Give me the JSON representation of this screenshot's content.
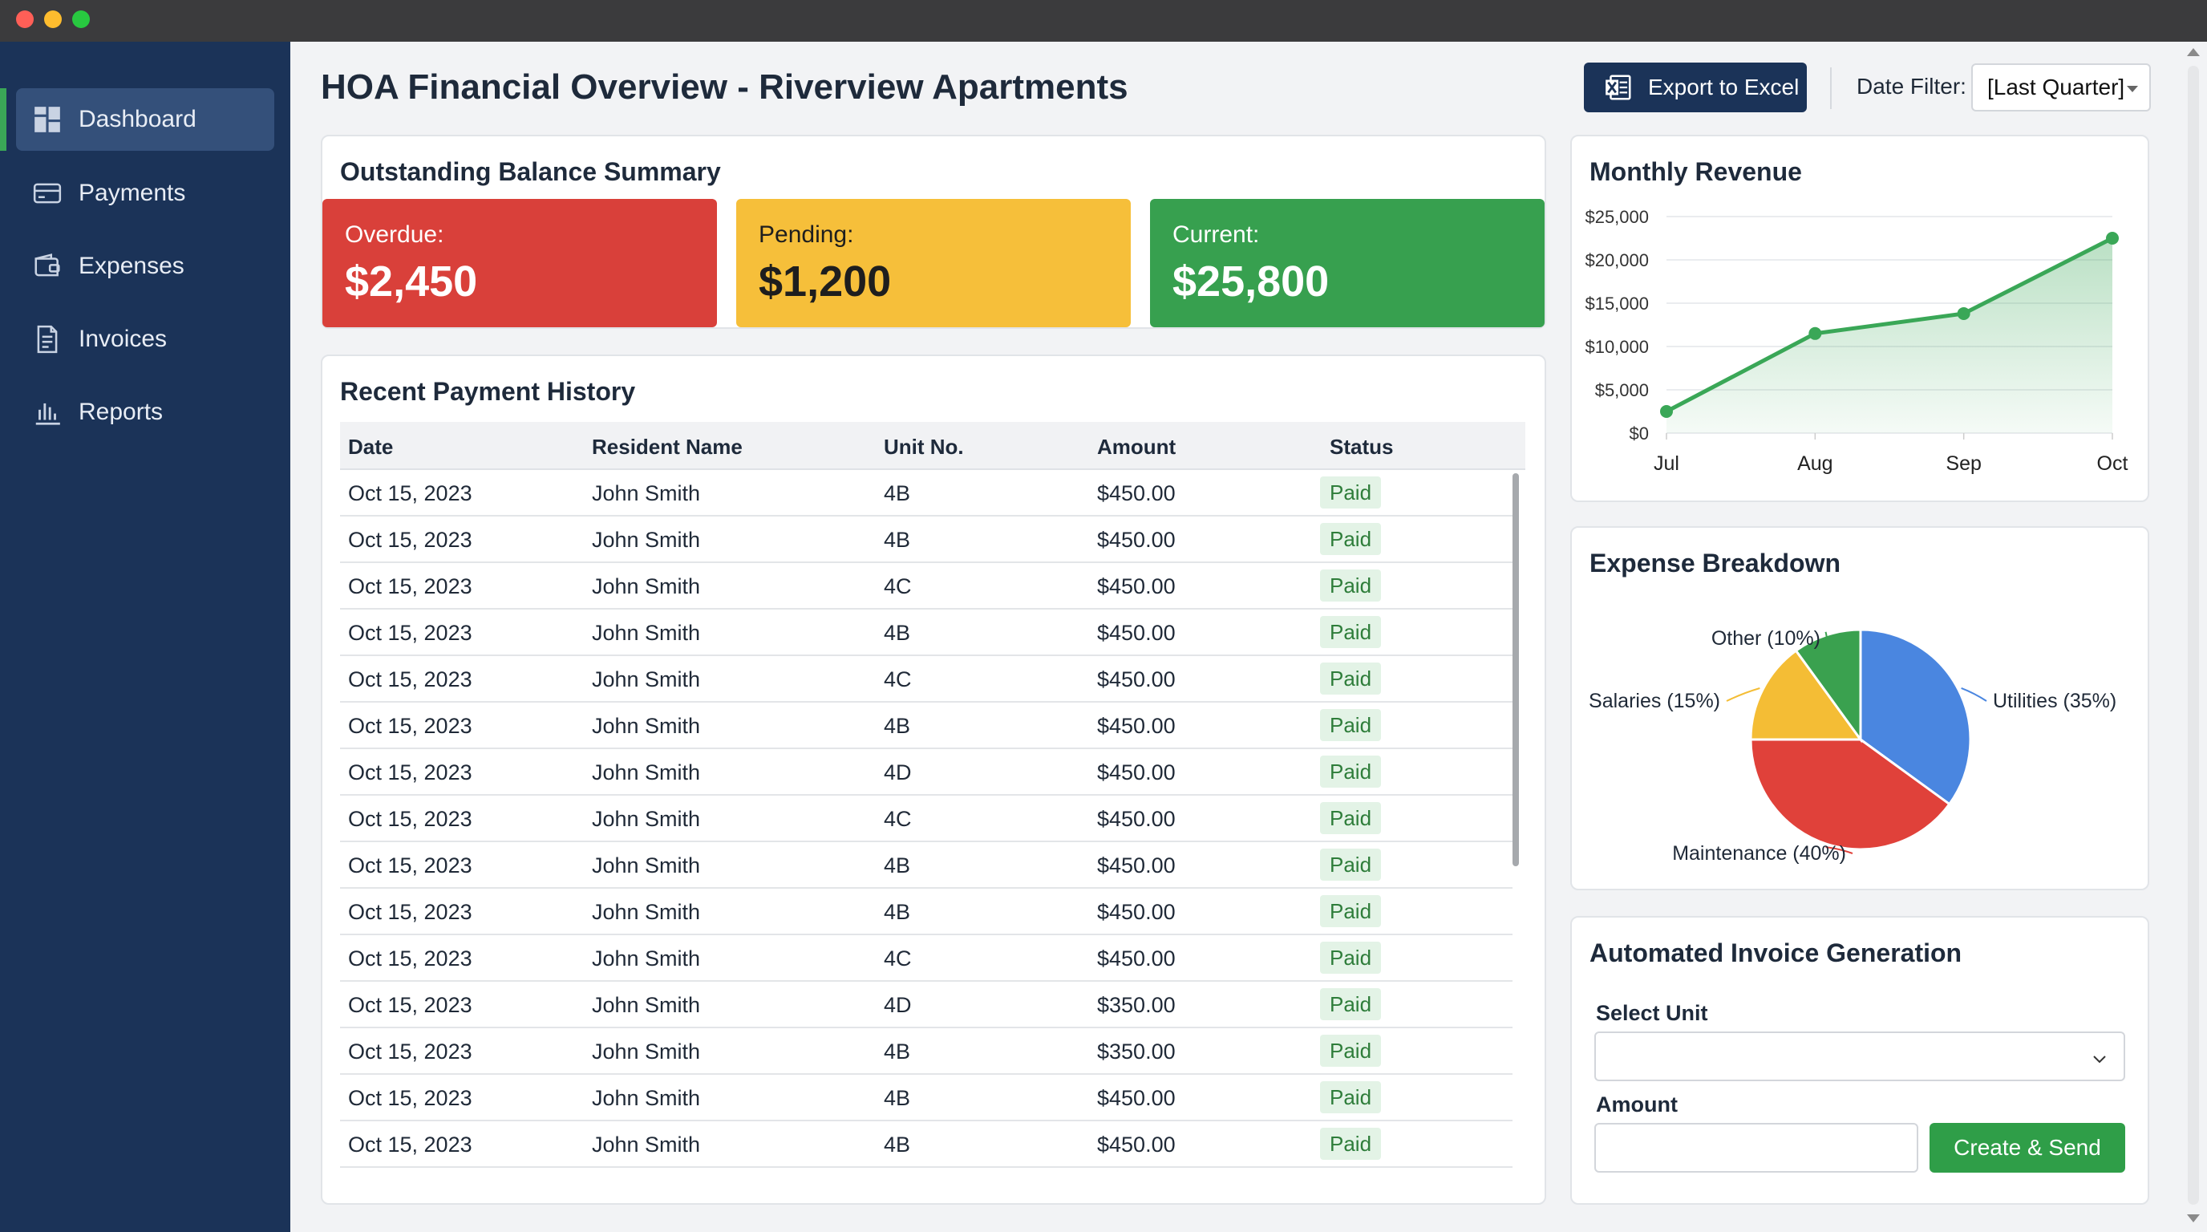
{
  "window": {
    "controls": [
      "close",
      "minimize",
      "zoom"
    ]
  },
  "sidebar": {
    "items": [
      {
        "label": "Dashboard",
        "icon": "dashboard-icon",
        "active": true
      },
      {
        "label": "Payments",
        "icon": "credit-card-icon",
        "active": false
      },
      {
        "label": "Expenses",
        "icon": "wallet-icon",
        "active": false
      },
      {
        "label": "Invoices",
        "icon": "document-icon",
        "active": false
      },
      {
        "label": "Reports",
        "icon": "bar-chart-icon",
        "active": false
      }
    ]
  },
  "header": {
    "title": "HOA Financial Overview - Riverview Apartments",
    "export_label": "Export to Excel",
    "date_filter_label": "Date Filter:",
    "date_filter_value": "[Last Quarter]"
  },
  "summary": {
    "title": "Outstanding Balance Summary",
    "tiles": [
      {
        "label": "Overdue:",
        "value": "$2,450",
        "color": "#d9403a"
      },
      {
        "label": "Pending:",
        "value": "$1,200",
        "color": "#f6bf3a"
      },
      {
        "label": "Current:",
        "value": "$25,800",
        "color": "#37a04f"
      }
    ]
  },
  "payments": {
    "title": "Recent Payment History",
    "columns": [
      "Date",
      "Resident Name",
      "Unit No.",
      "Amount",
      "Status"
    ],
    "rows": [
      [
        "Oct 15, 2023",
        "John Smith",
        "4B",
        "$450.00",
        "Paid"
      ],
      [
        "Oct 15, 2023",
        "John Smith",
        "4B",
        "$450.00",
        "Paid"
      ],
      [
        "Oct 15, 2023",
        "John Smith",
        "4C",
        "$450.00",
        "Paid"
      ],
      [
        "Oct 15, 2023",
        "John Smith",
        "4B",
        "$450.00",
        "Paid"
      ],
      [
        "Oct 15, 2023",
        "John Smith",
        "4C",
        "$450.00",
        "Paid"
      ],
      [
        "Oct 15, 2023",
        "John Smith",
        "4B",
        "$450.00",
        "Paid"
      ],
      [
        "Oct 15, 2023",
        "John Smith",
        "4D",
        "$450.00",
        "Paid"
      ],
      [
        "Oct 15, 2023",
        "John Smith",
        "4C",
        "$450.00",
        "Paid"
      ],
      [
        "Oct 15, 2023",
        "John Smith",
        "4B",
        "$450.00",
        "Paid"
      ],
      [
        "Oct 15, 2023",
        "John Smith",
        "4B",
        "$450.00",
        "Paid"
      ],
      [
        "Oct 15, 2023",
        "John Smith",
        "4C",
        "$450.00",
        "Paid"
      ],
      [
        "Oct 15, 2023",
        "John Smith",
        "4D",
        "$350.00",
        "Paid"
      ],
      [
        "Oct 15, 2023",
        "John Smith",
        "4B",
        "$350.00",
        "Paid"
      ],
      [
        "Oct 15, 2023",
        "John Smith",
        "4B",
        "$450.00",
        "Paid"
      ],
      [
        "Oct 15, 2023",
        "John Smith",
        "4B",
        "$450.00",
        "Paid"
      ]
    ]
  },
  "revenue": {
    "title": "Monthly Revenue"
  },
  "expenses": {
    "title": "Expense Breakdown"
  },
  "invoice": {
    "title": "Automated Invoice Generation",
    "unit_label": "Select Unit",
    "unit_value": "",
    "amount_label": "Amount",
    "amount_value": "",
    "submit_label": "Create & Send"
  },
  "chart_data": [
    {
      "type": "area",
      "title": "Monthly Revenue",
      "categories": [
        "Jul",
        "Aug",
        "Sep",
        "Oct"
      ],
      "values": [
        2500,
        11500,
        13800,
        22500
      ],
      "ylim": [
        0,
        25000
      ],
      "yticks": [
        "$0",
        "$5,000",
        "$10,000",
        "$15,000",
        "$20,000",
        "$25,000"
      ],
      "grid": true,
      "color": "#3aa757"
    },
    {
      "type": "pie",
      "title": "Expense Breakdown",
      "slices": [
        {
          "label": "Utilities (35%)",
          "value": 35,
          "color": "#4a86e0"
        },
        {
          "label": "Maintenance (40%)",
          "value": 40,
          "color": "#e0413a"
        },
        {
          "label": "Salaries (15%)",
          "value": 15,
          "color": "#f4bd35"
        },
        {
          "label": "Other (10%)",
          "value": 10,
          "color": "#3aa14f"
        }
      ]
    }
  ]
}
